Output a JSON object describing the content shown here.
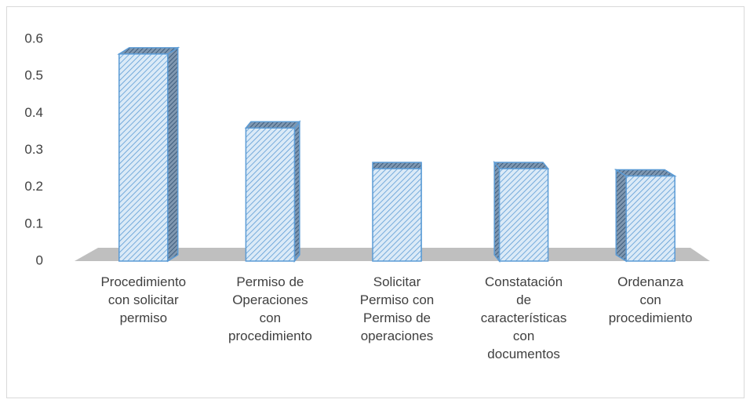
{
  "chart_data": {
    "type": "bar3d",
    "categories": [
      "Procedimiento\ncon  solicitar\npermiso",
      "Permiso de\nOperaciones\ncon\nprocedimiento",
      "Solicitar\nPermiso con\nPermiso de\noperaciones",
      "Constatación\nde\ncaracterísticas\ncon\ndocumentos",
      "Ordenanza\ncon\nprocedimiento"
    ],
    "values": [
      0.56,
      0.36,
      0.25,
      0.25,
      0.23
    ],
    "color": "#5b9bd5",
    "ylim": [
      0,
      0.6
    ],
    "yticks": [
      0,
      0.1,
      0.2,
      0.3,
      0.4,
      0.5,
      0.6
    ],
    "grid": false
  }
}
